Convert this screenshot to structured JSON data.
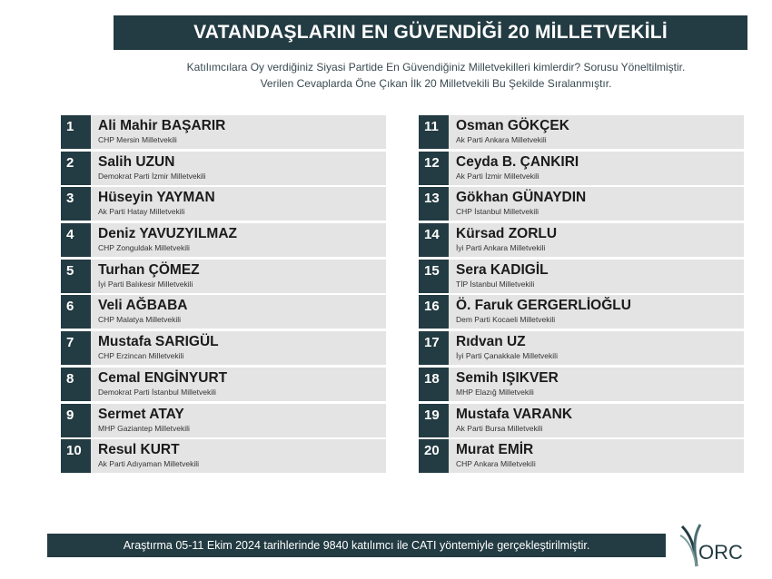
{
  "title": "VATANDAŞLARIN EN GÜVENDİĞİ 20 MİLLETVEKİLİ",
  "subtitle_lines": [
    "Katılımcılara Oy verdiğiniz Siyasi Partide En Güvendiğiniz Milletvekilleri kimlerdir? Sorusu Yöneltilmiştir.",
    "Verilen Cevaplarda Öne Çıkan İlk 20 Milletvekili Bu Şekilde Sıralanmıştır."
  ],
  "left": [
    {
      "rank": "1",
      "name": "Ali Mahir BAŞARIR",
      "desc": "CHP Mersin Milletvekili"
    },
    {
      "rank": "2",
      "name": "Salih UZUN",
      "desc": "Demokrat Parti İzmir Milletvekili"
    },
    {
      "rank": "3",
      "name": "Hüseyin YAYMAN",
      "desc": "Ak Parti Hatay Milletvekili"
    },
    {
      "rank": "4",
      "name": "Deniz YAVUZYILMAZ",
      "desc": "CHP Zonguldak Milletvekili"
    },
    {
      "rank": "5",
      "name": "Turhan ÇÖMEZ",
      "desc": "İyi Parti Balıkesir Milletvekili"
    },
    {
      "rank": "6",
      "name": "Veli AĞBABA",
      "desc": "CHP Malatya Milletvekili"
    },
    {
      "rank": "7",
      "name": "Mustafa SARIGÜL",
      "desc": "CHP Erzincan Milletvekili"
    },
    {
      "rank": "8",
      "name": "Cemal ENGİNYURT",
      "desc": "Demokrat Parti İstanbul Milletvekili"
    },
    {
      "rank": "9",
      "name": "Sermet ATAY",
      "desc": "MHP Gaziantep Milletvekili"
    },
    {
      "rank": "10",
      "name": "Resul KURT",
      "desc": "Ak Parti Adıyaman Milletvekili"
    }
  ],
  "right": [
    {
      "rank": "11",
      "name": "Osman GÖKÇEK",
      "desc": "Ak Parti Ankara Milletvekili"
    },
    {
      "rank": "12",
      "name": "Ceyda B. ÇANKIRI",
      "desc": "Ak Parti İzmir Milletvekili"
    },
    {
      "rank": "13",
      "name": "Gökhan GÜNAYDIN",
      "desc": "CHP İstanbul Milletvekili"
    },
    {
      "rank": "14",
      "name": "Kürsad ZORLU",
      "desc": "İyi Parti Ankara Milletvekili"
    },
    {
      "rank": "15",
      "name": "Sera KADIGİL",
      "desc": "TİP İstanbul Milletvekili"
    },
    {
      "rank": "16",
      "name": "Ö. Faruk GERGERLİOĞLU",
      "desc": "Dem Parti Kocaeli Milletvekili"
    },
    {
      "rank": "17",
      "name": "Rıdvan UZ",
      "desc": "İyi Parti Çanakkale Milletvekili"
    },
    {
      "rank": "18",
      "name": "Semih IŞIKVER",
      "desc": "MHP Elazığ Milletvekili"
    },
    {
      "rank": "19",
      "name": "Mustafa VARANK",
      "desc": "Ak Parti Bursa Milletvekili"
    },
    {
      "rank": "20",
      "name": "Murat EMİR",
      "desc": "CHP Ankara Milletvekili"
    }
  ],
  "footer": "Araştırma 05-11 Ekim 2024 tarihlerinde 9840 katılımcı ile CATI yöntemiyle gerçekleştirilmiştir.",
  "logo_text": "ORC",
  "colors": {
    "primary": "#233b42",
    "row_bg": "#e4e4e4"
  }
}
